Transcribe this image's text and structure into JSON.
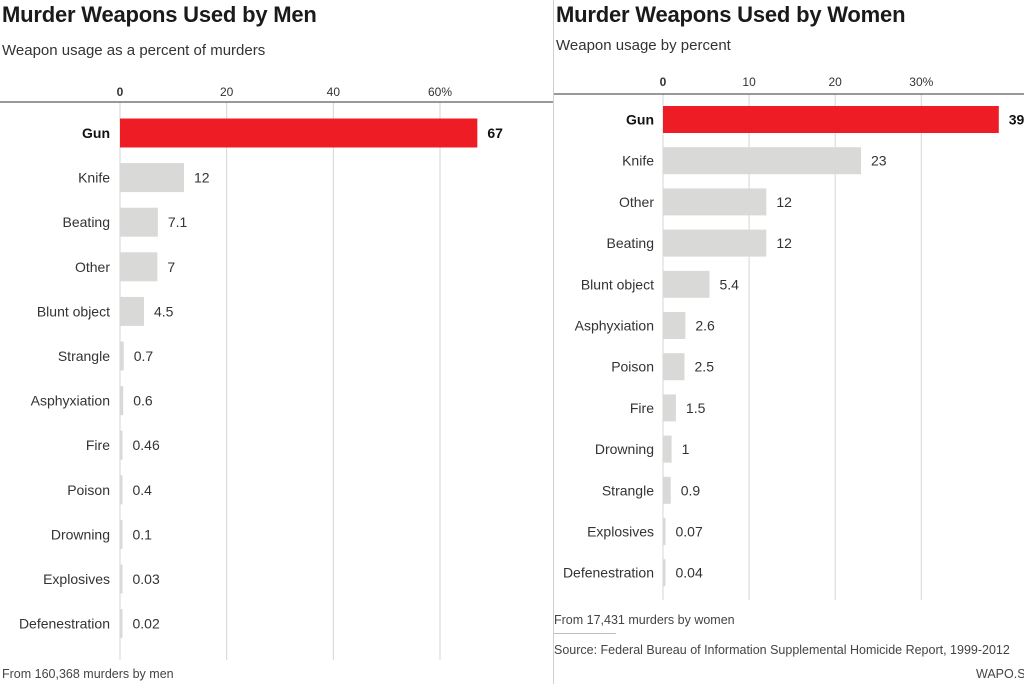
{
  "colors": {
    "highlight": "#ee1c25",
    "bar": "#d9d9d7",
    "grid": "#d6d6d6",
    "axis": "#333333"
  },
  "chart_data": [
    {
      "type": "bar",
      "orientation": "horizontal",
      "title": "Murder Weapons Used by Men",
      "subtitle": "Weapon usage as a percent of murders",
      "categories": [
        "Gun",
        "Knife",
        "Beating",
        "Other",
        "Blunt object",
        "Strangle",
        "Asphyxiation",
        "Fire",
        "Poison",
        "Drowning",
        "Explosives",
        "Defenestration"
      ],
      "values": [
        67,
        12,
        7.1,
        7,
        4.5,
        0.7,
        0.6,
        0.46,
        0.4,
        0.1,
        0.03,
        0.02
      ],
      "value_labels": [
        "67",
        "12",
        "7.1",
        "7",
        "4.5",
        "0.7",
        "0.6",
        "0.46",
        "0.4",
        "0.1",
        "0.03",
        "0.02"
      ],
      "highlight": "Gun",
      "ticks": [
        0,
        20,
        40,
        60
      ],
      "tick_labels": [
        "0",
        "20",
        "40",
        "60%"
      ],
      "xlim": [
        0,
        72
      ],
      "grid": true,
      "note": "From 160,368 murders by men"
    },
    {
      "type": "bar",
      "orientation": "horizontal",
      "title": "Murder Weapons Used by Women",
      "subtitle": "Weapon usage by percent",
      "categories": [
        "Gun",
        "Knife",
        "Other",
        "Beating",
        "Blunt object",
        "Asphyxiation",
        "Poison",
        "Fire",
        "Drowning",
        "Strangle",
        "Explosives",
        "Defenestration"
      ],
      "values": [
        39,
        23,
        12,
        12,
        5.4,
        2.6,
        2.5,
        1.5,
        1,
        0.9,
        0.07,
        0.04
      ],
      "value_labels": [
        "39",
        "23",
        "12",
        "12",
        "5.4",
        "2.6",
        "2.5",
        "1.5",
        "1",
        "0.9",
        "0.07",
        "0.04"
      ],
      "highlight": "Gun",
      "ticks": [
        0,
        10,
        20,
        30
      ],
      "tick_labels": [
        "0",
        "10",
        "20",
        "30%"
      ],
      "xlim": [
        0,
        41
      ],
      "grid": true,
      "note": "From 17,431 murders by women",
      "source": "Source: Federal Bureau of Information Supplemental Homicide Report, 1999-2012",
      "credit": "WAPO.ST"
    }
  ]
}
